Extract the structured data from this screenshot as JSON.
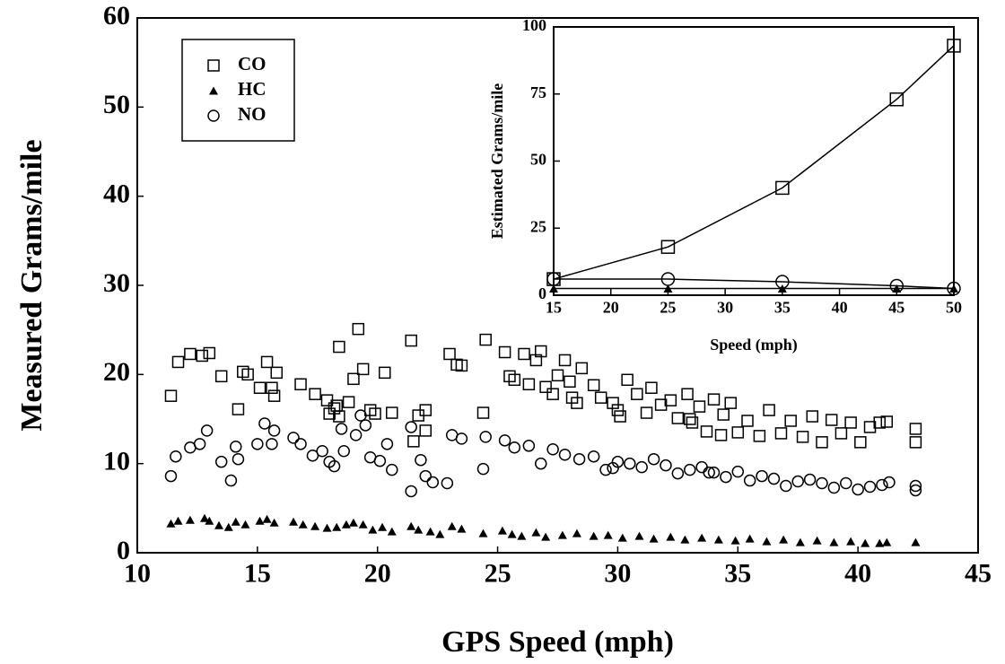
{
  "chart_data": [
    {
      "type": "scatter",
      "xlabel": "GPS Speed (mph)",
      "ylabel": "Measured Grams/mile",
      "xlim": [
        10,
        45
      ],
      "ylim": [
        0,
        60
      ],
      "xticks": [
        10,
        15,
        20,
        25,
        30,
        35,
        40,
        45
      ],
      "yticks": [
        0,
        10,
        20,
        30,
        40,
        50,
        60
      ],
      "legend": "upper left",
      "series": [
        {
          "name": "CO",
          "marker": "square",
          "color": "#000000",
          "x": [
            11.4,
            11.7,
            12.2,
            12.7,
            13.0,
            13.5,
            14.2,
            14.4,
            14.6,
            15.1,
            15.4,
            15.6,
            15.7,
            15.8,
            16.8,
            17.4,
            17.9,
            18.0,
            18.2,
            18.3,
            18.4,
            18.4,
            18.8,
            19.0,
            19.2,
            19.4,
            19.7,
            19.9,
            20.3,
            20.6,
            21.4,
            21.5,
            21.7,
            22.0,
            22.0,
            23.0,
            23.3,
            23.5,
            24.4,
            24.5,
            25.3,
            25.5,
            25.7,
            26.1,
            26.3,
            26.6,
            26.8,
            27.0,
            27.3,
            27.8,
            28.0,
            28.1,
            28.3,
            28.5,
            29.0,
            29.3,
            29.8,
            30.1,
            30.4,
            30.8,
            31.2,
            31.4,
            31.8,
            32.2,
            32.5,
            32.9,
            33.1,
            33.4,
            33.7,
            34.0,
            34.4,
            34.7,
            35.0,
            35.4,
            35.9,
            36.3,
            36.8,
            37.2,
            37.7,
            38.1,
            38.5,
            38.9,
            39.3,
            39.7,
            40.1,
            40.5,
            40.9,
            41.2,
            42.4,
            42.4,
            34.3,
            27.5,
            30.0,
            33.0
          ],
          "values": [
            17.6,
            21.4,
            22.3,
            22.1,
            22.4,
            19.8,
            16.1,
            20.3,
            20.0,
            18.5,
            21.4,
            18.5,
            17.6,
            20.2,
            18.9,
            17.8,
            17.1,
            15.6,
            16.2,
            16.5,
            15.3,
            23.1,
            16.9,
            19.5,
            25.1,
            20.6,
            16.0,
            15.6,
            20.2,
            15.7,
            23.8,
            12.5,
            15.4,
            16.0,
            13.7,
            22.3,
            21.1,
            21.0,
            15.7,
            23.9,
            22.5,
            19.8,
            19.4,
            22.3,
            18.9,
            21.6,
            22.6,
            18.6,
            17.8,
            21.6,
            19.2,
            17.4,
            16.8,
            20.7,
            18.8,
            17.4,
            16.8,
            15.3,
            19.4,
            17.8,
            15.7,
            18.5,
            16.6,
            17.1,
            15.1,
            17.8,
            14.6,
            16.4,
            13.6,
            17.2,
            15.5,
            16.8,
            13.5,
            14.8,
            13.1,
            16.0,
            13.4,
            14.8,
            13.0,
            15.3,
            12.4,
            14.9,
            13.4,
            14.6,
            12.4,
            14.1,
            14.6,
            14.7,
            13.9,
            12.4,
            13.2,
            19.9,
            16.0,
            15.0
          ]
        },
        {
          "name": "HC",
          "marker": "triangle",
          "color": "#000000",
          "x": [
            11.4,
            11.7,
            12.2,
            12.8,
            13.0,
            13.4,
            13.8,
            14.1,
            14.5,
            15.1,
            15.4,
            15.7,
            16.5,
            16.9,
            17.4,
            17.9,
            18.3,
            18.7,
            19.0,
            19.4,
            19.8,
            20.2,
            20.6,
            21.4,
            21.7,
            22.2,
            22.6,
            23.1,
            23.5,
            24.4,
            25.2,
            25.6,
            26.0,
            26.6,
            27.0,
            27.7,
            28.3,
            29.0,
            29.6,
            30.2,
            30.9,
            31.5,
            32.2,
            32.8,
            33.5,
            34.2,
            34.9,
            35.5,
            36.2,
            36.9,
            37.6,
            38.3,
            39.0,
            39.7,
            40.3,
            40.9,
            41.2,
            42.4
          ],
          "values": [
            3.3,
            3.6,
            3.7,
            3.9,
            3.6,
            3.1,
            2.9,
            3.5,
            3.2,
            3.6,
            3.8,
            3.4,
            3.5,
            3.2,
            3.0,
            2.8,
            2.9,
            3.2,
            3.4,
            3.2,
            2.6,
            2.9,
            2.4,
            3.0,
            2.6,
            2.4,
            2.1,
            3.0,
            2.7,
            2.2,
            2.5,
            2.1,
            1.9,
            2.3,
            1.8,
            2.0,
            2.2,
            1.9,
            2.0,
            1.7,
            1.9,
            1.6,
            1.8,
            1.5,
            1.7,
            1.5,
            1.4,
            1.6,
            1.3,
            1.5,
            1.2,
            1.4,
            1.2,
            1.3,
            1.1,
            1.1,
            1.2,
            1.2
          ]
        },
        {
          "name": "NO",
          "marker": "circle",
          "color": "#000000",
          "x": [
            11.4,
            11.6,
            12.2,
            12.6,
            12.9,
            13.5,
            13.9,
            14.1,
            14.2,
            15.0,
            15.3,
            15.6,
            15.7,
            16.5,
            16.8,
            17.3,
            17.7,
            18.0,
            18.2,
            18.5,
            18.6,
            19.1,
            19.3,
            19.5,
            19.7,
            20.1,
            20.4,
            20.6,
            21.4,
            21.4,
            21.8,
            22.0,
            22.3,
            22.9,
            23.1,
            23.5,
            24.4,
            24.5,
            25.3,
            25.7,
            26.3,
            26.8,
            27.3,
            27.8,
            28.4,
            29.0,
            29.5,
            30.0,
            30.5,
            31.0,
            31.5,
            32.0,
            32.5,
            33.0,
            33.5,
            34.0,
            34.5,
            35.0,
            35.5,
            36.0,
            36.5,
            37.0,
            37.5,
            38.0,
            38.5,
            39.0,
            39.5,
            40.0,
            40.5,
            41.0,
            41.3,
            42.4,
            42.4,
            33.8,
            29.8
          ],
          "values": [
            8.6,
            10.8,
            11.8,
            12.2,
            13.7,
            10.2,
            8.1,
            11.9,
            10.5,
            12.2,
            14.5,
            12.2,
            13.7,
            12.9,
            12.2,
            10.9,
            11.4,
            10.2,
            9.7,
            13.9,
            11.4,
            13.2,
            15.4,
            14.3,
            10.7,
            10.3,
            12.2,
            9.3,
            6.9,
            14.1,
            10.4,
            8.6,
            7.9,
            7.8,
            13.2,
            12.8,
            9.4,
            13.0,
            12.6,
            11.8,
            12.0,
            10.0,
            11.6,
            11.0,
            10.5,
            10.8,
            9.3,
            10.2,
            10.0,
            9.6,
            10.5,
            9.8,
            8.9,
            9.3,
            9.6,
            9.0,
            8.5,
            9.1,
            8.1,
            8.6,
            8.3,
            7.5,
            8.0,
            8.2,
            7.8,
            7.3,
            7.8,
            7.1,
            7.4,
            7.6,
            7.9,
            7.5,
            7.0,
            9.0,
            9.5
          ]
        }
      ]
    },
    {
      "type": "line",
      "xlabel": "Speed (mph)",
      "ylabel": "Estimated Grams/mile",
      "xlim": [
        15,
        50
      ],
      "ylim": [
        0,
        100
      ],
      "xticks": [
        15,
        20,
        25,
        30,
        35,
        40,
        45,
        50
      ],
      "yticks": [
        0,
        25,
        50,
        75,
        100
      ],
      "x": [
        15,
        25,
        35,
        45,
        50
      ],
      "series": [
        {
          "name": "CO",
          "marker": "square",
          "color": "#000000",
          "values": [
            6,
            18,
            40,
            73,
            93
          ]
        },
        {
          "name": "HC",
          "marker": "triangle",
          "color": "#000000",
          "values": [
            2.5,
            2.5,
            2.5,
            2.5,
            2.5
          ]
        },
        {
          "name": "NO",
          "marker": "circle",
          "color": "#000000",
          "values": [
            6,
            6,
            5,
            3.5,
            2.5
          ]
        }
      ]
    }
  ]
}
